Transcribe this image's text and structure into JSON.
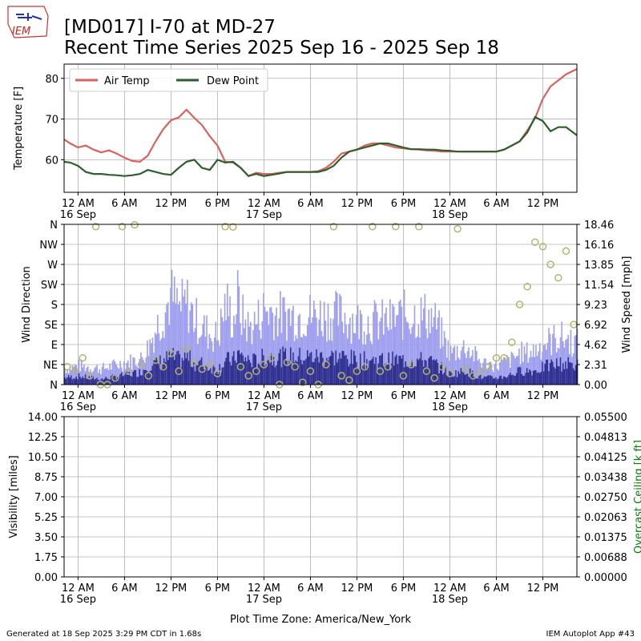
{
  "header": {
    "title": "[MD017] I-70 at MD-27",
    "subtitle": "Recent Time Series 2025 Sep 16 - 2025 Sep 18",
    "logo_text": "IEM"
  },
  "footer": {
    "generated": "Generated at 18 Sep 2025 3:29 PM CDT in 1.68s",
    "app": "IEM Autoplot App #43",
    "xlabel": "Plot Time Zone: America/New_York"
  },
  "colors": {
    "air_temp": "#d9625f",
    "dew_point": "#2e5e2e",
    "gust": "#9f9fef",
    "speed": "#2f2f8f",
    "direction": "#b3b36f",
    "ceiling_axis": "#008000"
  },
  "chart_data": [
    {
      "type": "line",
      "ylabel": "Temperature [F]",
      "ylim": [
        52,
        83.5
      ],
      "yticks": [
        60,
        70,
        80
      ],
      "legend": "top-left",
      "grid": true,
      "x_ticks": [
        {
          "hour": 0,
          "label": "12 AM",
          "date": "16 Sep"
        },
        {
          "hour": 6,
          "label": "6 AM"
        },
        {
          "hour": 12,
          "label": "12 PM"
        },
        {
          "hour": 18,
          "label": "6 PM"
        },
        {
          "hour": 24,
          "label": "12 AM",
          "date": "17 Sep"
        },
        {
          "hour": 30,
          "label": "6 AM"
        },
        {
          "hour": 36,
          "label": "12 PM"
        },
        {
          "hour": 42,
          "label": "6 PM"
        },
        {
          "hour": 48,
          "label": "12 AM",
          "date": "18 Sep"
        },
        {
          "hour": 54,
          "label": "6 AM"
        },
        {
          "hour": 60,
          "label": "12 PM"
        }
      ],
      "xlim_hours": [
        -1.8,
        64.4
      ],
      "series": [
        {
          "name": "Air Temp",
          "x": [
            -1.8,
            -1,
            0,
            1,
            2,
            3,
            4,
            5,
            6,
            7,
            8,
            9,
            10,
            11,
            12,
            13,
            14,
            15,
            16,
            17,
            18,
            19,
            20,
            21,
            22,
            23,
            24,
            25,
            26,
            27,
            28,
            29,
            30,
            31,
            32,
            33,
            34,
            35,
            36,
            37,
            38,
            39,
            40,
            41,
            42,
            43,
            44,
            45,
            46,
            47,
            48,
            49,
            50,
            51,
            52,
            53,
            54,
            55,
            56,
            57,
            58,
            59,
            60,
            61,
            62,
            63,
            64.4
          ],
          "y": [
            65,
            64,
            63,
            63.5,
            62.5,
            61.8,
            62.3,
            61.5,
            60.5,
            59.7,
            59.5,
            61,
            64.5,
            67.5,
            69.7,
            70.4,
            72.3,
            70.3,
            68.5,
            65.8,
            63.5,
            59.5,
            59.3,
            58,
            56,
            56.8,
            56.5,
            56.5,
            56.8,
            57,
            57,
            57,
            57,
            57.2,
            58,
            59.5,
            61.5,
            62,
            62.5,
            63.5,
            64,
            64,
            63.5,
            63,
            62.8,
            62.6,
            62.5,
            62.3,
            62.2,
            62,
            62,
            62,
            62,
            62,
            62,
            62,
            62,
            62.5,
            63.5,
            64.5,
            67.2,
            70.2,
            75,
            78,
            79.5,
            81,
            82.3
          ]
        },
        {
          "name": "Dew Point",
          "x": [
            -1.8,
            -1,
            0,
            1,
            2,
            3,
            4,
            5,
            6,
            7,
            8,
            9,
            10,
            11,
            12,
            13,
            14,
            15,
            16,
            17,
            18,
            19,
            20,
            21,
            22,
            23,
            24,
            25,
            26,
            27,
            28,
            29,
            30,
            31,
            32,
            33,
            34,
            35,
            36,
            37,
            38,
            39,
            40,
            41,
            42,
            43,
            44,
            45,
            46,
            47,
            48,
            49,
            50,
            51,
            52,
            53,
            54,
            55,
            56,
            57,
            58,
            59,
            60,
            61,
            62,
            63,
            64.4
          ],
          "y": [
            59.5,
            59.3,
            58.5,
            57,
            56.5,
            56.5,
            56.3,
            56.2,
            56,
            56.2,
            56.5,
            57.5,
            57,
            56.5,
            56.3,
            58,
            59.5,
            60,
            58,
            57.5,
            60,
            59.3,
            59.5,
            58,
            56,
            56.5,
            56,
            56.3,
            56.6,
            57,
            57,
            57,
            57,
            57,
            57.5,
            58.5,
            60.5,
            62,
            62.5,
            63,
            63.5,
            64,
            64,
            63.5,
            63,
            62.6,
            62.6,
            62.5,
            62.5,
            62.3,
            62.2,
            62,
            62,
            62,
            62,
            62,
            62,
            62.5,
            63.5,
            64.5,
            66.7,
            70.5,
            69.5,
            67,
            68,
            68,
            66
          ]
        }
      ]
    },
    {
      "type": "bar",
      "ylabel": "Wind Direction",
      "y2label": "Wind Speed [mph]",
      "dir_ticks": [
        "N",
        "NE",
        "E",
        "SE",
        "S",
        "SW",
        "W",
        "NW",
        "N"
      ],
      "speed_ticks": [
        "0.00",
        "2.31",
        "4.62",
        "6.92",
        "9.23",
        "11.54",
        "13.85",
        "16.16",
        "18.46"
      ],
      "speed_lim": [
        0,
        18.46
      ],
      "grid": true,
      "gust_envelope": {
        "x": [
          -1.8,
          0,
          3,
          6,
          8,
          9,
          10,
          11,
          12,
          13,
          14,
          15,
          16,
          17,
          18,
          19,
          20,
          20.5,
          21,
          22,
          23,
          24,
          26,
          28,
          30,
          32,
          34,
          36,
          38,
          40,
          42,
          44,
          45,
          46,
          48,
          50,
          52,
          54,
          55,
          56,
          57,
          58,
          59,
          60,
          61,
          62,
          63,
          64.4
        ],
        "y": [
          2.5,
          3,
          2.5,
          3.5,
          4,
          6,
          9,
          11.5,
          14,
          12,
          13,
          10.5,
          9,
          8,
          7.5,
          13,
          10,
          14,
          11,
          9,
          10,
          12,
          11,
          11,
          11,
          11,
          11,
          10,
          10,
          10,
          11,
          11,
          11,
          10,
          5,
          6,
          3.5,
          3,
          3.5,
          4,
          5,
          5,
          5.5,
          6.5,
          7,
          7.5,
          7.2,
          6.6
        ]
      },
      "speed_envelope": {
        "x": [
          -1.8,
          0,
          3,
          6,
          8,
          9,
          10,
          11,
          12,
          13,
          14,
          15,
          16,
          17,
          18,
          19,
          20,
          20.5,
          21,
          22,
          23,
          24,
          26,
          28,
          30,
          32,
          34,
          36,
          38,
          40,
          42,
          44,
          45,
          46,
          48,
          50,
          52,
          54,
          55,
          56,
          57,
          58,
          59,
          60,
          61,
          62,
          63,
          64.4
        ],
        "y": [
          1,
          1.2,
          0.8,
          1.4,
          1.8,
          2.8,
          3,
          3.5,
          4,
          3.5,
          4,
          3,
          3,
          2.5,
          2.3,
          3.5,
          3.5,
          4.5,
          4,
          3.5,
          3.3,
          4,
          4,
          4,
          4,
          4,
          4,
          3.5,
          3.5,
          3.5,
          3.5,
          3.5,
          3.5,
          3,
          1.5,
          2,
          1,
          1,
          1.2,
          1.5,
          2,
          2,
          2,
          2.5,
          2.8,
          3,
          3,
          2.8
        ]
      },
      "direction_points_deg": [
        [
          -1.4,
          40
        ],
        [
          -0.4,
          30
        ],
        [
          0.6,
          60
        ],
        [
          1.5,
          20
        ],
        [
          2.3,
          355
        ],
        [
          2.9,
          0
        ],
        [
          3.8,
          0
        ],
        [
          4.8,
          15
        ],
        [
          5.7,
          355
        ],
        [
          6.5,
          30
        ],
        [
          7.3,
          359
        ],
        [
          8.2,
          45
        ],
        [
          9.1,
          20
        ],
        [
          10,
          55
        ],
        [
          11,
          40
        ],
        [
          12,
          70
        ],
        [
          13,
          30
        ],
        [
          14,
          80
        ],
        [
          15,
          50
        ],
        [
          16,
          35
        ],
        [
          17,
          45
        ],
        [
          18,
          25
        ],
        [
          19,
          355
        ],
        [
          20,
          354
        ],
        [
          21,
          40
        ],
        [
          22,
          20
        ],
        [
          23,
          30
        ],
        [
          24,
          45
        ],
        [
          25,
          60
        ],
        [
          26,
          0
        ],
        [
          27,
          50
        ],
        [
          28,
          40
        ],
        [
          29,
          5
        ],
        [
          30,
          30
        ],
        [
          31,
          0
        ],
        [
          32,
          45
        ],
        [
          33,
          355
        ],
        [
          34,
          20
        ],
        [
          35,
          10
        ],
        [
          36,
          30
        ],
        [
          37,
          40
        ],
        [
          38,
          355
        ],
        [
          39,
          30
        ],
        [
          40,
          40
        ],
        [
          41,
          355
        ],
        [
          42,
          20
        ],
        [
          43,
          45
        ],
        [
          44,
          355
        ],
        [
          45,
          30
        ],
        [
          46,
          15
        ],
        [
          47,
          40
        ],
        [
          48,
          25
        ],
        [
          49,
          350
        ],
        [
          50,
          35
        ],
        [
          51,
          20
        ],
        [
          52,
          30
        ],
        [
          53,
          40
        ],
        [
          54,
          60
        ],
        [
          55,
          60
        ],
        [
          56,
          95
        ],
        [
          57,
          180
        ],
        [
          58,
          220
        ],
        [
          59,
          320
        ],
        [
          60,
          310
        ],
        [
          61,
          270
        ],
        [
          62,
          240
        ],
        [
          63,
          300
        ],
        [
          64,
          135
        ]
      ]
    },
    {
      "type": "line",
      "ylabel": "Visibility [miles]",
      "y2label": "Overcast Ceiling [k ft]",
      "yticks": [
        "0.00",
        "1.75",
        "3.50",
        "5.25",
        "7.00",
        "8.75",
        "10.50",
        "12.25",
        "14.00"
      ],
      "y2ticks": [
        "0.00000",
        "0.00688",
        "0.01375",
        "0.02063",
        "0.02750",
        "0.03438",
        "0.04125",
        "0.04813",
        "0.05500"
      ],
      "ylim": [
        0,
        14
      ],
      "y2lim": [
        0,
        0.055
      ],
      "grid": true,
      "series": []
    }
  ]
}
